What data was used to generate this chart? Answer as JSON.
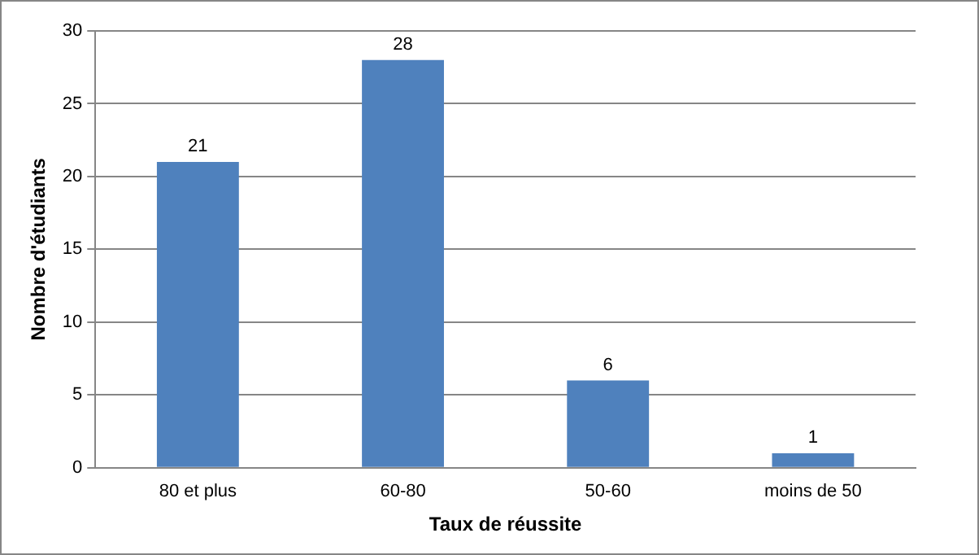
{
  "chart_data": {
    "type": "bar",
    "xlabel": "Taux de réussite",
    "ylabel": "Nombre d'étudiants",
    "categories": [
      "80 et plus",
      "60-80",
      "50-60",
      "moins de 50"
    ],
    "values": [
      21,
      28,
      6,
      1
    ],
    "color": "#4f81bd",
    "ylim": [
      0,
      30
    ],
    "yticks": [
      0,
      5,
      10,
      15,
      20,
      25,
      30
    ],
    "grid": "y",
    "data_labels": true,
    "legend": false
  }
}
